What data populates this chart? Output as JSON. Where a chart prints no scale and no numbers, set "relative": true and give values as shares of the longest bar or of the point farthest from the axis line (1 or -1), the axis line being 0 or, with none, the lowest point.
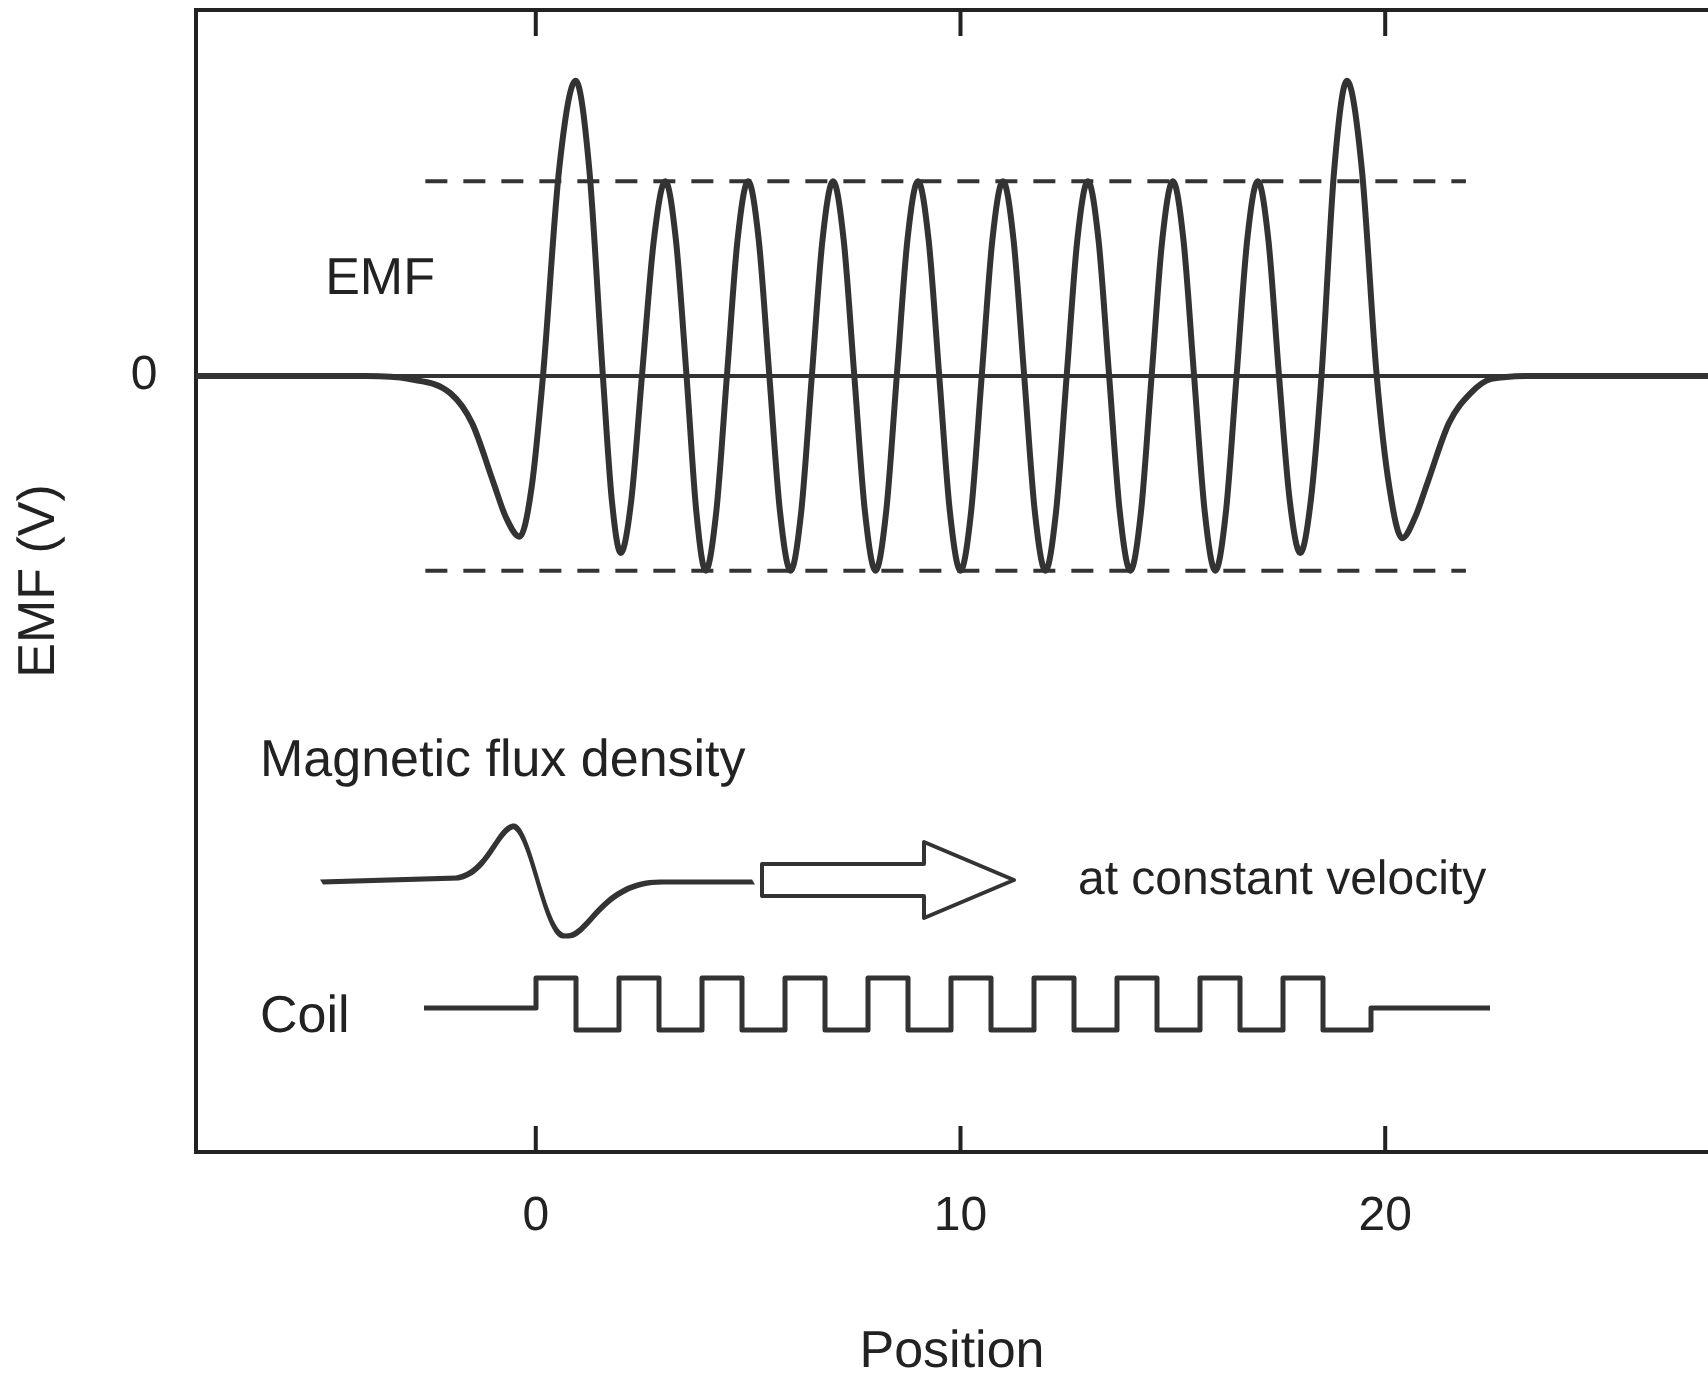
{
  "chart_data": {
    "type": "line",
    "xlabel": "Position",
    "ylabel": "EMF (V)",
    "relative": true,
    "xlim": [
      -8,
      27.6
    ],
    "xticks": [
      0,
      10,
      20
    ],
    "grid": false,
    "legend": false,
    "marker": "none",
    "ref_lines": [
      {
        "axis": "y",
        "value": 0,
        "label": "0",
        "color": "#333333"
      }
    ],
    "annotations": [
      "Magnetic flux density",
      "at constant velocity",
      "Coil"
    ],
    "series": [
      {
        "name": "EMF",
        "color": "#333333",
        "x": [
          -8,
          -4,
          -3,
          -2,
          -1.5,
          -1,
          -0.7,
          -0.38,
          -0.1,
          0.17,
          0.55,
          0.94,
          1.26,
          1.58,
          1.79,
          2,
          2.25,
          2.5,
          2.78,
          3.05,
          3.3,
          3.55,
          3.78,
          4,
          4.25,
          4.5,
          4.75,
          5,
          5.25,
          5.5,
          5.75,
          6,
          6.25,
          6.5,
          6.75,
          7,
          7.25,
          7.5,
          7.75,
          8,
          8.25,
          8.5,
          8.75,
          9,
          9.25,
          9.5,
          9.75,
          10,
          10.25,
          10.5,
          10.75,
          11,
          11.25,
          11.5,
          11.75,
          12,
          12.25,
          12.5,
          12.75,
          13,
          13.25,
          13.5,
          13.75,
          14,
          14.25,
          14.5,
          14.75,
          15,
          15.25,
          15.5,
          15.75,
          16,
          16.25,
          16.5,
          16.75,
          17,
          17.25,
          17.5,
          17.75,
          18,
          18.25,
          18.5,
          18.8,
          19.1,
          19.45,
          19.8,
          20.1,
          20.4,
          20.7,
          21,
          21.5,
          22,
          22.5,
          23.5,
          27.6
        ],
        "values": [
          0,
          0,
          -0.01,
          -0.06,
          -0.16,
          -0.36,
          -0.48,
          -0.545,
          -0.38,
          0,
          0.7,
          1,
          0.7,
          0,
          -0.42,
          -0.6,
          -0.42,
          0,
          0.46,
          0.66,
          0.46,
          0,
          -0.46,
          -0.66,
          -0.46,
          0,
          0.46,
          0.66,
          0.46,
          0,
          -0.46,
          -0.66,
          -0.46,
          0,
          0.46,
          0.66,
          0.46,
          0,
          -0.46,
          -0.66,
          -0.46,
          0,
          0.46,
          0.66,
          0.46,
          0,
          -0.46,
          -0.66,
          -0.46,
          0,
          0.46,
          0.66,
          0.46,
          0,
          -0.46,
          -0.66,
          -0.46,
          0,
          0.46,
          0.66,
          0.46,
          0,
          -0.46,
          -0.66,
          -0.46,
          0,
          0.46,
          0.66,
          0.46,
          0,
          -0.46,
          -0.66,
          -0.46,
          0,
          0.46,
          0.66,
          0.46,
          0,
          -0.42,
          -0.6,
          -0.42,
          0,
          0.7,
          1,
          0.7,
          0,
          -0.38,
          -0.55,
          -0.48,
          -0.36,
          -0.16,
          -0.06,
          -0.01,
          0,
          0
        ]
      },
      {
        "color": "#333333",
        "line_style": "dashed",
        "x": [
          -2.6,
          21.9
        ],
        "values": [
          0.66,
          0.66
        ]
      },
      {
        "color": "#333333",
        "line_style": "dashed",
        "x": [
          -2.6,
          21.9
        ],
        "values": [
          -0.66,
          -0.66
        ]
      }
    ]
  }
}
